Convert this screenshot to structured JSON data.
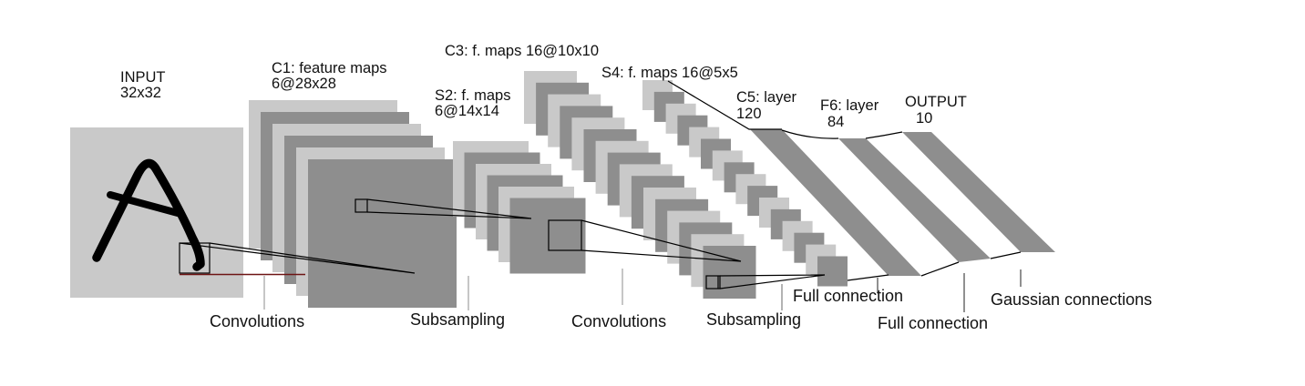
{
  "figure": {
    "description": "Convolutional neural network architecture diagram (input image of letter A flowing through stacked feature maps to output)"
  },
  "labels": {
    "input_1": "INPUT",
    "input_2": "32x32",
    "c1_1": "C1: feature maps",
    "c1_2": "6@28x28",
    "s2_1": "S2: f. maps",
    "s2_2": "6@14x14",
    "c3": "C3: f. maps 16@10x10",
    "s4": "S4: f. maps 16@5x5",
    "c5_1": "C5: layer",
    "c5_2": "120",
    "f6_1": "F6: layer",
    "f6_2": "84",
    "out_1": "OUTPUT",
    "out_2": "10",
    "op_conv1": "Convolutions",
    "op_sub1": "Subsampling",
    "op_conv2": "Convolutions",
    "op_sub2": "Subsampling",
    "op_full1": "Full connection",
    "op_full2": "Full connection",
    "op_gauss": "Gaussian connections"
  },
  "architecture": {
    "layers": [
      {
        "name": "INPUT",
        "size": "32x32"
      },
      {
        "name": "C1",
        "type": "feature maps",
        "count": 6,
        "size": "28x28"
      },
      {
        "name": "S2",
        "type": "f. maps",
        "count": 6,
        "size": "14x14"
      },
      {
        "name": "C3",
        "type": "f. maps",
        "count": 16,
        "size": "10x10"
      },
      {
        "name": "S4",
        "type": "f. maps",
        "count": 16,
        "size": "5x5"
      },
      {
        "name": "C5",
        "type": "layer",
        "units": 120
      },
      {
        "name": "F6",
        "type": "layer",
        "units": 84
      },
      {
        "name": "OUTPUT",
        "units": 10
      }
    ],
    "connections": [
      "Convolutions",
      "Subsampling",
      "Convolutions",
      "Subsampling",
      "Full connection",
      "Full connection",
      "Gaussian connections"
    ]
  },
  "colors": {
    "background": "#ffffff",
    "light_map": "#c9c9c9",
    "dark_map": "#8e8e8e",
    "band": "#8e8e8e",
    "line": "#000000",
    "red_line": "#6e1414",
    "tick_light": "#a8a8a8",
    "tick_dark": "#555555"
  }
}
